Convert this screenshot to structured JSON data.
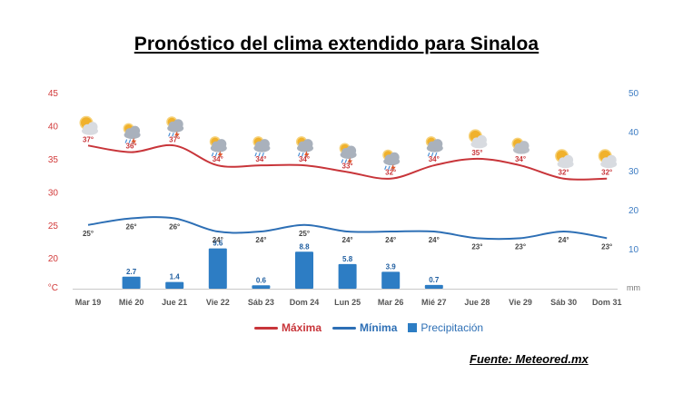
{
  "title": "Pronóstico del clima extendido para Sinaloa",
  "source": "Fuente: Meteored.mx",
  "colors": {
    "max": "#c8353a",
    "min": "#2d6fb5",
    "precip": "#2d7dc4",
    "axis_left": "#d23a3a",
    "axis_right": "#3d7cc3"
  },
  "legend": {
    "max_label": "Máxima",
    "min_label": "Mínima",
    "precip_label": "Precipitación"
  },
  "chart_data": {
    "type": "line",
    "categories": [
      "Mar 19",
      "Mié 20",
      "Jue 21",
      "Vie 22",
      "Sáb 23",
      "Dom 24",
      "Lun 25",
      "Mar 26",
      "Mié 27",
      "Jue 28",
      "Vie 29",
      "Sáb 30",
      "Dom 31"
    ],
    "series": [
      {
        "name": "Máxima",
        "values": [
          37,
          36,
          37,
          34,
          34,
          34,
          33,
          32,
          34,
          35,
          34,
          32,
          32
        ],
        "labels": [
          "37°",
          "36°",
          "37°",
          "34°",
          "34°",
          "34°",
          "33°",
          "32°",
          "34°",
          "35°",
          "34°",
          "32°",
          "32°"
        ]
      },
      {
        "name": "Mínima",
        "values": [
          25,
          26,
          26,
          24,
          24,
          25,
          24,
          24,
          24,
          23,
          23,
          24,
          23
        ],
        "labels": [
          "25°",
          "26°",
          "26°",
          "24°",
          "24°",
          "25°",
          "24°",
          "24°",
          "24°",
          "23°",
          "23°",
          "24°",
          "23°"
        ]
      },
      {
        "name": "Precipitación",
        "values": [
          0,
          2.7,
          1.4,
          9.6,
          0.6,
          8.8,
          5.8,
          3.9,
          0.7,
          0,
          0,
          0,
          0
        ],
        "labels": [
          "",
          "2.7",
          "1.4",
          "9.6",
          "0.6",
          "8.8",
          "5.8",
          "3.9",
          "0.7",
          "",
          "",
          "",
          ""
        ]
      }
    ],
    "icons": [
      "sun-cloud-icon",
      "storm-icon",
      "storm-icon",
      "storm-icon",
      "rain-icon",
      "storm-icon",
      "storm-icon",
      "storm-icon",
      "rain-icon",
      "sun-cloud-icon",
      "cloud-sun-icon",
      "sun-cloud-icon",
      "sun-cloud-icon"
    ],
    "y_left": {
      "ticks": [
        "45",
        "40",
        "35",
        "30",
        "25",
        "20"
      ],
      "range": [
        17,
        45
      ],
      "unit": "°C"
    },
    "y_right": {
      "ticks": [
        "50",
        "40",
        "30",
        "20",
        "10"
      ],
      "range": [
        0,
        50
      ],
      "unit": "mm"
    },
    "grid": false,
    "legend_position": "bottom"
  }
}
